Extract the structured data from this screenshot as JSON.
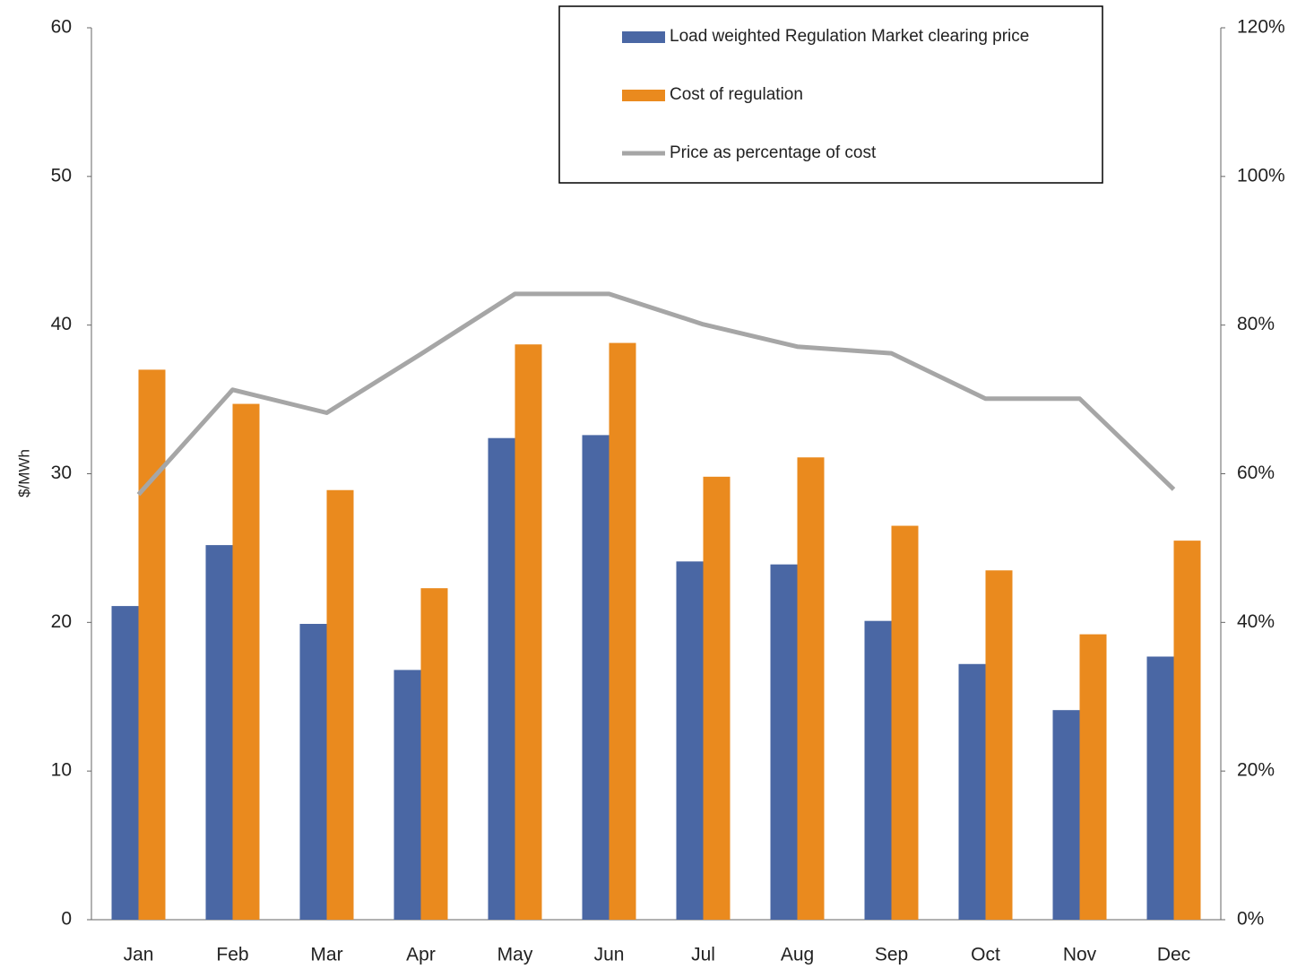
{
  "chart_data": {
    "type": "bar-line",
    "y_label": "$/MWh",
    "categories": [
      "Jan",
      "Feb",
      "Mar",
      "Apr",
      "May",
      "Jun",
      "Jul",
      "Aug",
      "Sep",
      "Oct",
      "Nov",
      "Dec"
    ],
    "series": [
      {
        "name": "Load weighted Regulation Market clearing price",
        "color": "#4a67a4",
        "type": "bar",
        "values": [
          21.1,
          25.2,
          19.9,
          16.8,
          32.4,
          32.6,
          24.1,
          23.9,
          20.1,
          17.2,
          14.1,
          17.7
        ]
      },
      {
        "name": "Cost of regulation",
        "color": "#ea8a1e",
        "type": "bar",
        "values": [
          37.0,
          34.7,
          28.9,
          22.3,
          38.7,
          38.8,
          29.8,
          31.1,
          26.5,
          23.5,
          19.2,
          25.5
        ]
      },
      {
        "name": "Price as percentage of cost",
        "color": "#a6a6a6",
        "type": "line",
        "axis": "y2",
        "values": [
          57.2,
          71.3,
          68.2,
          76.1,
          84.2,
          84.2,
          80.1,
          77.1,
          76.2,
          70.1,
          70.1,
          57.9
        ]
      }
    ],
    "ylim": [
      0,
      60
    ],
    "yticks": [
      0,
      10,
      20,
      30,
      40,
      50,
      60
    ],
    "y2lim": [
      0,
      120
    ],
    "y2ticks": [
      {
        "value": 0,
        "label": "0%"
      },
      {
        "value": 20,
        "label": "20%"
      },
      {
        "value": 40,
        "label": "40%"
      },
      {
        "value": 60,
        "label": "60%"
      },
      {
        "value": 80,
        "label": "80%"
      },
      {
        "value": 100,
        "label": "100%"
      },
      {
        "value": 120,
        "label": "120%"
      }
    ],
    "grid": false,
    "legend": "top-right"
  }
}
